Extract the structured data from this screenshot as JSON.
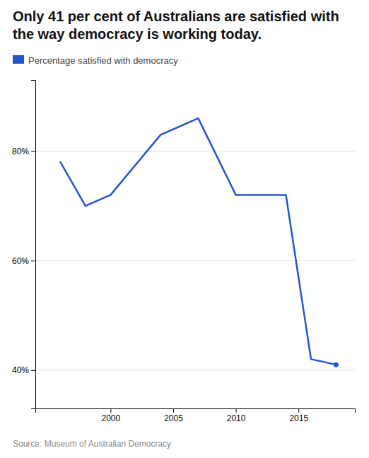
{
  "chart_data": {
    "type": "line",
    "title": "Only 41 per cent of Australians are satisfied with the way democracy is working today.",
    "source": "Source: Museum of Australian Democracy",
    "x": [
      1996,
      1998,
      2000,
      2004,
      2007,
      2010,
      2013,
      2014,
      2016,
      2018
    ],
    "series": [
      {
        "name": "Percentage satisfied with democracy",
        "color": "#2255cc",
        "values": [
          78,
          70,
          72,
          83,
          86,
          72,
          72,
          72,
          42,
          41
        ]
      }
    ],
    "xlim": [
      1994.0,
      2019.5
    ],
    "xticks": [
      2000,
      2005,
      2010,
      2015
    ],
    "ylim": [
      33,
      93
    ],
    "yticks": [
      {
        "value": 40,
        "label": "40%"
      },
      {
        "value": 60,
        "label": "60%"
      },
      {
        "value": 80,
        "label": "80%"
      }
    ],
    "grid": true,
    "legend": "top"
  }
}
